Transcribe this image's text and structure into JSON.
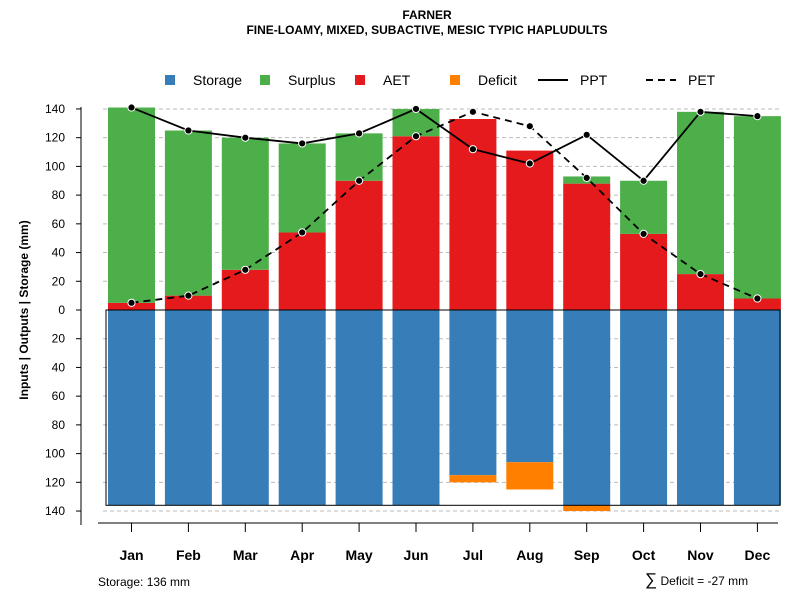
{
  "title": "FARNER",
  "subtitle": "FINE-LOAMY, MIXED, SUBACTIVE, MESIC TYPIC HAPLUDULTS",
  "footer": {
    "storage_label": "Storage: 136 mm",
    "deficit_symbol": "∑",
    "deficit_label": "Deficit = -27 mm"
  },
  "colors": {
    "storage": "#377EB8",
    "surplus": "#4DAF4A",
    "aet": "#E41A1C",
    "deficit": "#FF7F00",
    "ppt": "#000000",
    "pet": "#000000",
    "grid": "#bbbbbb"
  },
  "chart_data": {
    "type": "bar",
    "ylabel": "Inputs | Outputs | Storage    (mm)",
    "ylim": [
      -140,
      140
    ],
    "yticks": [
      140,
      120,
      100,
      80,
      60,
      40,
      20,
      0,
      -20,
      -40,
      -60,
      -80,
      -100,
      -120,
      -140
    ],
    "ytick_labels": [
      "140",
      "120",
      "100",
      "80",
      "60",
      "40",
      "20",
      "0",
      "20",
      "40",
      "60",
      "80",
      "100",
      "120",
      "140"
    ],
    "grid": true,
    "legend_position": "top",
    "categories": [
      "Jan",
      "Feb",
      "Mar",
      "Apr",
      "May",
      "Jun",
      "Jul",
      "Aug",
      "Sep",
      "Oct",
      "Nov",
      "Dec"
    ],
    "legend": [
      {
        "name": "Storage",
        "kind": "box",
        "color_key": "storage"
      },
      {
        "name": "Surplus",
        "kind": "box",
        "color_key": "surplus"
      },
      {
        "name": "AET",
        "kind": "box",
        "color_key": "aet"
      },
      {
        "name": "Deficit",
        "kind": "box",
        "color_key": "deficit"
      },
      {
        "name": "PPT",
        "kind": "solid"
      },
      {
        "name": "PET",
        "kind": "dashed"
      }
    ],
    "series": [
      {
        "name": "AET",
        "values": [
          5,
          10,
          28,
          54,
          90,
          121,
          133,
          111,
          88,
          53,
          25,
          8
        ]
      },
      {
        "name": "Surplus",
        "values": [
          136,
          115,
          92,
          62,
          33,
          19,
          0,
          0,
          5,
          37,
          113,
          127
        ]
      },
      {
        "name": "Storage",
        "values": [
          136,
          136,
          136,
          136,
          136,
          136,
          115,
          106,
          136,
          136,
          136,
          136
        ]
      },
      {
        "name": "Deficit",
        "values": [
          0,
          0,
          0,
          0,
          0,
          0,
          5,
          19,
          4,
          0,
          0,
          0
        ]
      },
      {
        "name": "PPT",
        "values": [
          141,
          125,
          120,
          116,
          123,
          140,
          112,
          102,
          122,
          90,
          138,
          135
        ]
      },
      {
        "name": "PET",
        "values": [
          5,
          10,
          28,
          54,
          90,
          121,
          138,
          128,
          92,
          53,
          25,
          8
        ]
      }
    ]
  }
}
